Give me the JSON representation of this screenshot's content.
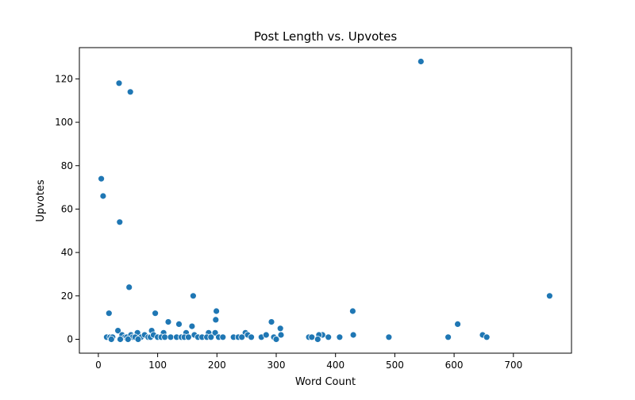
{
  "chart_data": {
    "type": "scatter",
    "title": "Post Length vs. Upvotes",
    "xlabel": "Word Count",
    "ylabel": "Upvotes",
    "xlim": [
      -32,
      798
    ],
    "ylim": [
      -6.4,
      134.4
    ],
    "xticks": [
      0,
      100,
      200,
      300,
      400,
      500,
      600,
      700
    ],
    "yticks": [
      0,
      20,
      40,
      60,
      80,
      100,
      120
    ],
    "grid": false,
    "marker_color": "#1f77b4",
    "series": [
      {
        "x": [
          544,
          35,
          54,
          5,
          8,
          36,
          52,
          160,
          761,
          18,
          199,
          429,
          96,
          198,
          292,
          606,
          118,
          136,
          158,
          307,
          33,
          66,
          90,
          110,
          148,
          186,
          197,
          248,
          378,
          430,
          648,
          14,
          20,
          24,
          40,
          45,
          48,
          55,
          58,
          62,
          72,
          78,
          84,
          88,
          93,
          100,
          106,
          112,
          122,
          132,
          140,
          145,
          152,
          162,
          168,
          175,
          183,
          190,
          203,
          210,
          228,
          236,
          242,
          252,
          258,
          275,
          283,
          296,
          308,
          355,
          360,
          372,
          388,
          407,
          490,
          590,
          655,
          22,
          37,
          50,
          67,
          300,
          370
        ],
        "y": [
          128,
          118,
          114,
          74,
          66,
          54,
          24,
          20,
          20,
          12,
          13,
          13,
          12,
          9,
          8,
          7,
          8,
          7,
          6,
          5,
          4,
          3,
          4,
          3,
          3,
          3,
          3,
          3,
          2,
          2,
          2,
          1,
          1,
          1,
          2,
          1,
          1,
          2,
          1,
          1,
          1,
          2,
          1,
          1,
          2,
          1,
          1,
          1,
          1,
          1,
          1,
          1,
          1,
          2,
          1,
          1,
          1,
          1,
          1,
          1,
          1,
          1,
          1,
          2,
          1,
          1,
          2,
          1,
          2,
          1,
          1,
          2,
          1,
          1,
          1,
          1,
          1,
          0,
          0,
          0,
          0,
          0,
          0
        ]
      }
    ]
  }
}
